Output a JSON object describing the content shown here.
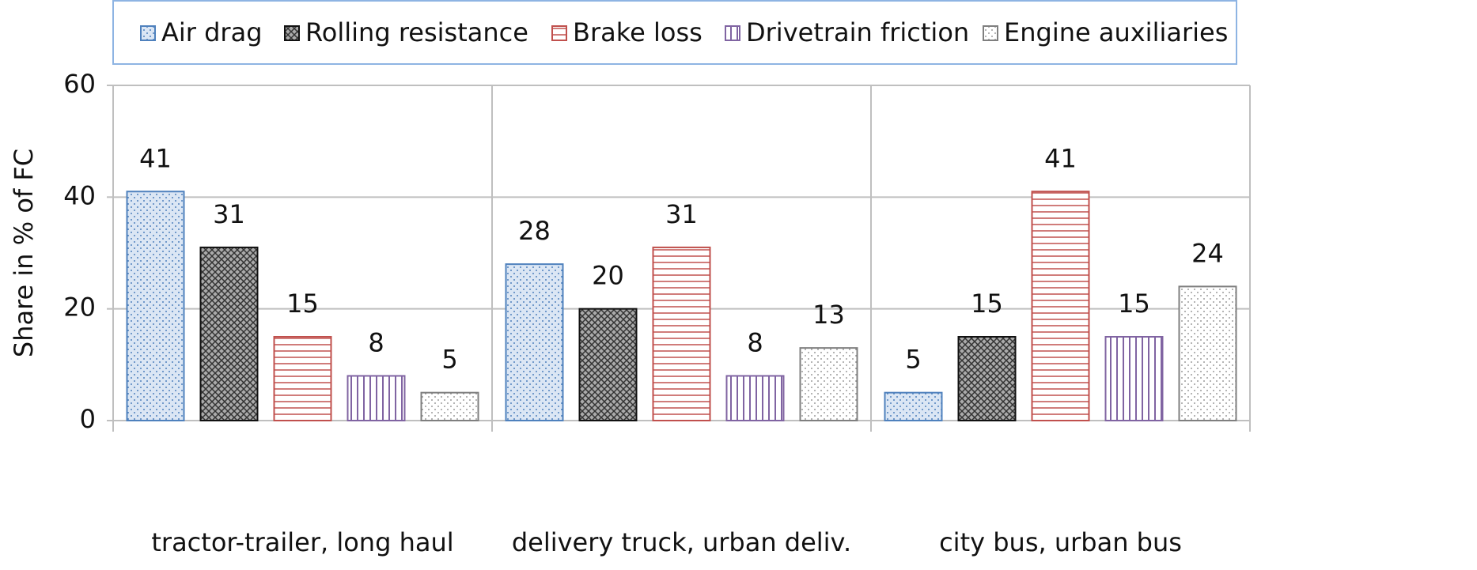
{
  "chart_data": {
    "type": "bar",
    "y_label": "Share in % of FC",
    "categories": [
      "tractor-trailer, long haul",
      "delivery truck, urban deliv.",
      "city bus, urban bus"
    ],
    "series": [
      {
        "name": "Air drag",
        "color": "#4f81bd",
        "pattern": "dots",
        "values": [
          41,
          28,
          5
        ]
      },
      {
        "name": "Rolling resistance",
        "color": "#111111",
        "pattern": "crosshatch",
        "values": [
          31,
          20,
          15
        ]
      },
      {
        "name": "Brake loss",
        "color": "#c0504d",
        "pattern": "horizontal",
        "values": [
          15,
          31,
          41
        ]
      },
      {
        "name": "Drivetrain friction",
        "color": "#8064a2",
        "pattern": "vertical",
        "values": [
          8,
          8,
          15
        ]
      },
      {
        "name": "Engine auxiliaries",
        "color": "#7f7f7f",
        "pattern": "sparse-dots",
        "values": [
          5,
          13,
          24
        ]
      }
    ],
    "ylim": [
      0,
      60
    ],
    "yticks": [
      0,
      20,
      40,
      60
    ],
    "grid": true
  }
}
